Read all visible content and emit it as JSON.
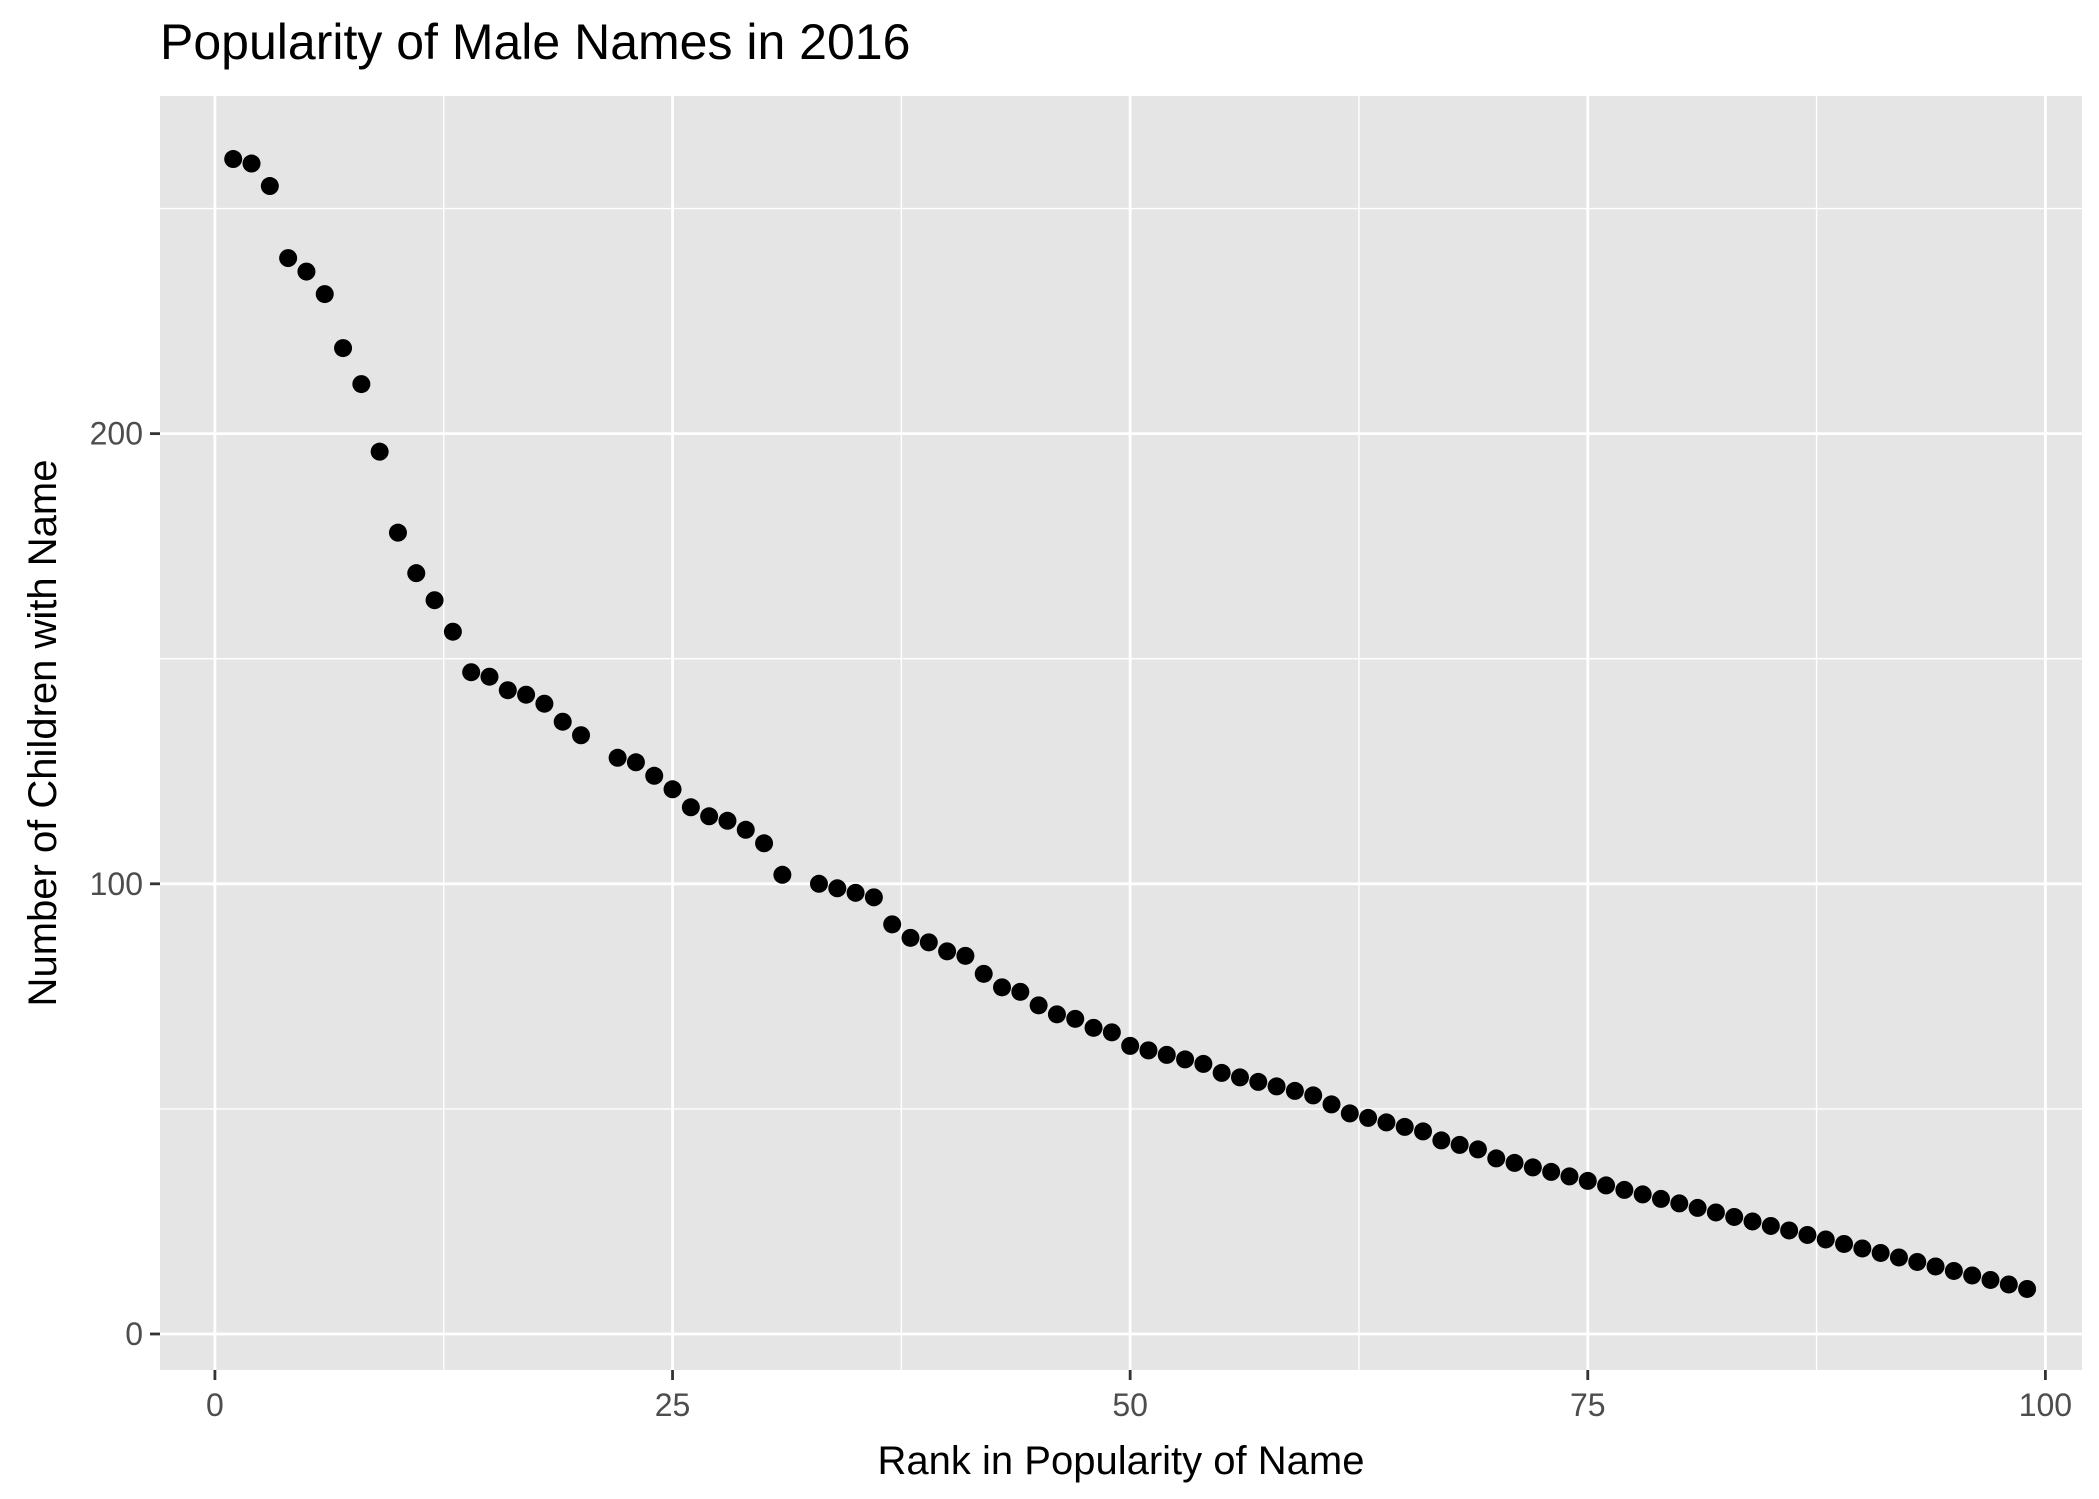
{
  "chart_data": {
    "type": "scatter",
    "title": "Popularity of Male Names in 2016",
    "xlabel": "Rank in Popularity of Name",
    "ylabel": "Number of Children with Name",
    "xlim": [
      -3,
      102
    ],
    "ylim": [
      -8,
      275
    ],
    "x_ticks": [
      0,
      25,
      50,
      75,
      100
    ],
    "x_tick_labels": [
      "0",
      "25",
      "50",
      "75",
      "100"
    ],
    "y_ticks": [
      0,
      100,
      200
    ],
    "y_tick_labels": [
      "0",
      "100",
      "200"
    ],
    "x_minor_ticks": [
      12.5,
      37.5,
      62.5,
      87.5
    ],
    "y_minor_ticks": [
      50,
      150,
      250
    ],
    "grid": true,
    "legend": "none",
    "colors": {
      "panel": "#e5e5e5",
      "grid": "#ffffff",
      "point": "#000000",
      "tick_text": "#4d4d4d"
    },
    "x": [
      1,
      2,
      3,
      4,
      5,
      6,
      7,
      8,
      9,
      10,
      11,
      12,
      13,
      14,
      15,
      16,
      17,
      18,
      19,
      20,
      22,
      23,
      24,
      25,
      26,
      27,
      28,
      29,
      30,
      31,
      33,
      34,
      35,
      36,
      37,
      38,
      39,
      40,
      41,
      42,
      43,
      44,
      45,
      46,
      47,
      48,
      49,
      50,
      51,
      52,
      53,
      54,
      55,
      56,
      57,
      58,
      59,
      60,
      61,
      62,
      63,
      64,
      65,
      66,
      67,
      68,
      69,
      70,
      71,
      72,
      73,
      74,
      75,
      76,
      77,
      78,
      79,
      80,
      81,
      82,
      83,
      84,
      85,
      86,
      87,
      88,
      89,
      90,
      91,
      92,
      93,
      94,
      95,
      96,
      97,
      98,
      99
    ],
    "y": [
      261,
      260,
      255,
      239,
      236,
      231,
      219,
      211,
      196,
      178,
      169,
      163,
      156,
      147,
      146,
      143,
      142,
      140,
      136,
      133,
      128,
      127,
      124,
      121,
      117,
      115,
      114,
      112,
      109,
      102,
      100,
      99,
      98,
      97,
      91,
      88,
      87,
      85,
      84,
      80,
      77,
      76,
      73,
      71,
      70,
      68,
      67,
      64,
      63,
      62,
      61,
      60,
      58,
      57,
      56,
      55,
      54,
      53,
      51,
      49,
      48,
      47,
      46,
      45,
      43,
      42,
      41,
      39,
      38,
      37,
      36,
      35,
      34,
      33,
      32,
      31,
      30,
      29,
      28,
      27,
      26,
      25,
      24,
      23,
      22,
      21,
      20,
      19,
      18,
      17,
      16,
      15,
      14,
      13,
      12,
      11,
      10
    ]
  }
}
